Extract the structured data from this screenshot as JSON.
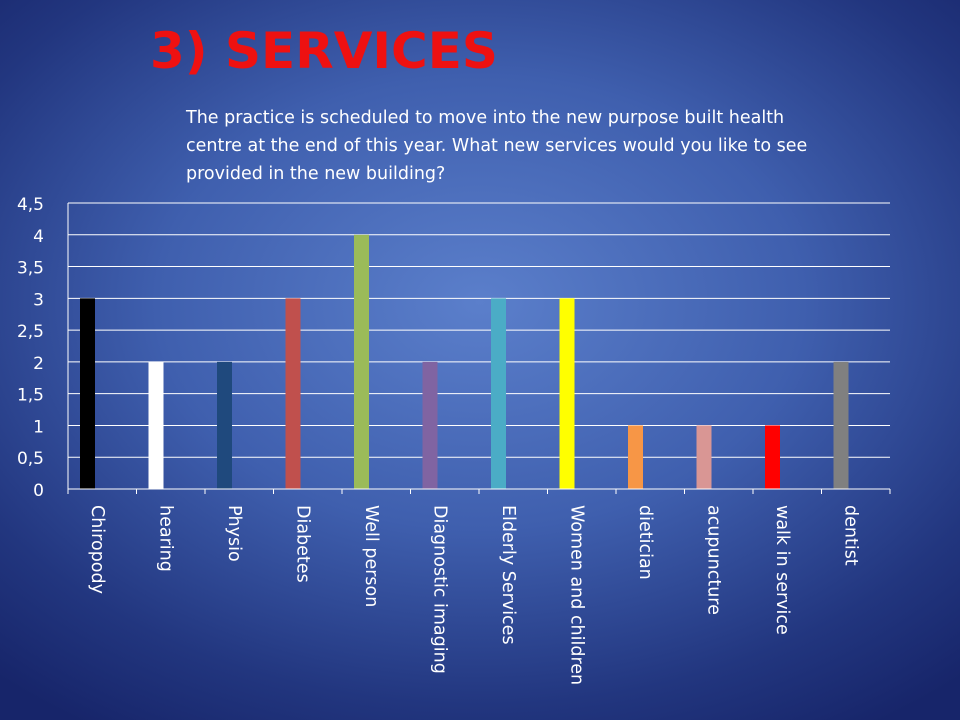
{
  "slide": {
    "title": "3) SERVICES",
    "subtitle": "The practice is scheduled to move into the new purpose built health centre at the end of this year.  What new services would you like to see provided in the new building?"
  },
  "chart_data": {
    "type": "bar",
    "categories": [
      "Chiropody",
      "hearing",
      "Physio",
      "Diabetes",
      "Well person",
      "Diagnostic imaging",
      "Elderly Services",
      "Women and children",
      "dietician",
      "acupuncture",
      "walk in service",
      "dentist"
    ],
    "values": [
      3,
      2,
      2,
      3,
      4,
      2,
      3,
      3,
      1,
      1,
      1,
      2
    ],
    "colors": [
      "#000000",
      "#ffffff",
      "#1f497d",
      "#c0504d",
      "#9bbb59",
      "#8064a2",
      "#4bacc6",
      "#ffff00",
      "#f79646",
      "#d99694",
      "#ff0000",
      "#808080"
    ],
    "yticks": [
      "0",
      "0,5",
      "1",
      "1,5",
      "2",
      "2,5",
      "3",
      "3,5",
      "4",
      "4,5"
    ],
    "ylim": [
      0,
      4.5
    ],
    "grid": true,
    "legend": "none"
  }
}
